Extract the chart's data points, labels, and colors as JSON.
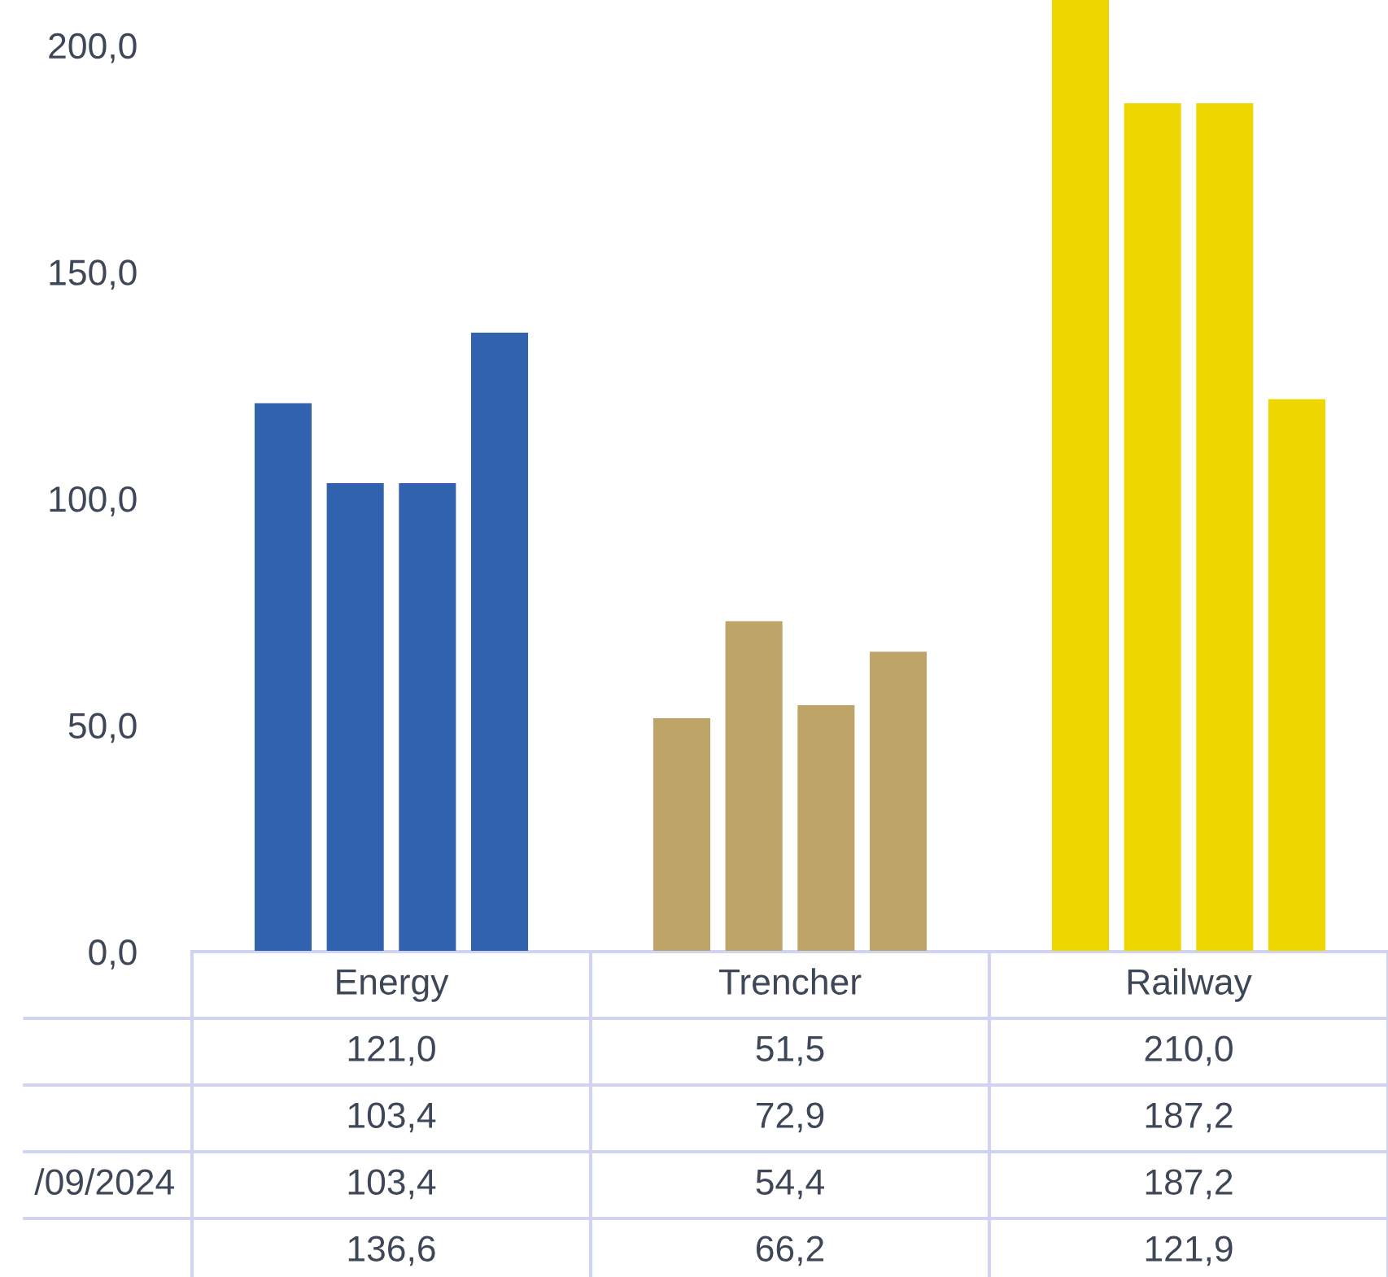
{
  "chart_data": {
    "type": "bar",
    "categories": [
      "Energy",
      "Trencher",
      "Railway"
    ],
    "series": [
      {
        "name": null,
        "colors": [
          "#3162ae",
          "#bfa468",
          "#eed700"
        ],
        "values": [
          121.0,
          51.5,
          210.0
        ]
      },
      {
        "name": null,
        "colors": [
          "#3162ae",
          "#bfa468",
          "#eed700"
        ],
        "values": [
          103.4,
          72.9,
          187.2
        ]
      },
      {
        "name": "/09/2024",
        "colors": [
          "#3162ae",
          "#bfa468",
          "#eed700"
        ],
        "values": [
          103.4,
          54.4,
          187.2
        ]
      },
      {
        "name": null,
        "colors": [
          "#3162ae",
          "#bfa468",
          "#eed700"
        ],
        "values": [
          136.6,
          66.2,
          121.9
        ]
      }
    ],
    "ylim": [
      0,
      210
    ],
    "yticks": [
      {
        "value": 0,
        "label": "0,0"
      },
      {
        "value": 50,
        "label": "50,0"
      },
      {
        "value": 100,
        "label": "100,0"
      },
      {
        "value": 150,
        "label": "150,0"
      },
      {
        "value": 200,
        "label": "200,0"
      }
    ],
    "annotations": [
      "121,0",
      "51,5",
      "210,0",
      "103,4",
      "72,9",
      "187,2",
      "103,4",
      "54,4",
      "187,2",
      "136,6",
      "66,2",
      "121,9"
    ],
    "grid": false,
    "legend": false
  }
}
